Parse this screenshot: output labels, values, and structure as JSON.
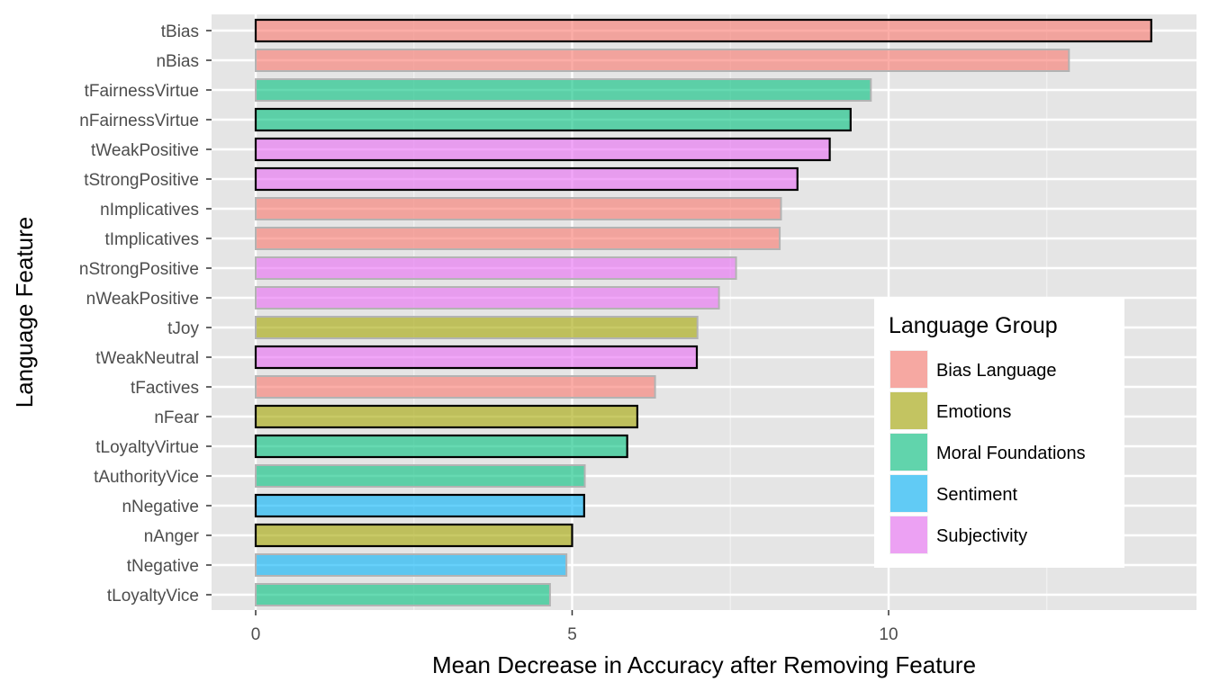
{
  "chart_data": {
    "type": "bar",
    "orientation": "horizontal",
    "xlabel": "Mean Decrease in Accuracy after Removing Feature",
    "ylabel": "Language Feature",
    "xlim": [
      -0.7,
      14.5
    ],
    "xticks": [
      0,
      5,
      10
    ],
    "grid": true,
    "legend": {
      "title": "Language Group",
      "placement": "bottom-right inside",
      "entries": [
        {
          "name": "Bias Language",
          "color": "#f8766d"
        },
        {
          "name": "Emotions",
          "color": "#a3a500"
        },
        {
          "name": "Moral Foundations",
          "color": "#00bf7d"
        },
        {
          "name": "Sentiment",
          "color": "#00b0f6"
        },
        {
          "name": "Subjectivity",
          "color": "#e76bf3"
        }
      ]
    },
    "fill_alpha": 0.6,
    "bars": [
      {
        "feature": "tBias",
        "value": 14.15,
        "group": "Bias Language",
        "outline": "black"
      },
      {
        "feature": "nBias",
        "value": 12.85,
        "group": "Bias Language",
        "outline": "grey"
      },
      {
        "feature": "tFairnessVirtue",
        "value": 9.72,
        "group": "Moral Foundations",
        "outline": "grey"
      },
      {
        "feature": "nFairnessVirtue",
        "value": 9.4,
        "group": "Moral Foundations",
        "outline": "black"
      },
      {
        "feature": "tWeakPositive",
        "value": 9.07,
        "group": "Subjectivity",
        "outline": "black"
      },
      {
        "feature": "tStrongPositive",
        "value": 8.56,
        "group": "Subjectivity",
        "outline": "black"
      },
      {
        "feature": "nImplicatives",
        "value": 8.3,
        "group": "Bias Language",
        "outline": "grey"
      },
      {
        "feature": "tImplicatives",
        "value": 8.28,
        "group": "Bias Language",
        "outline": "grey"
      },
      {
        "feature": "nStrongPositive",
        "value": 7.59,
        "group": "Subjectivity",
        "outline": "grey"
      },
      {
        "feature": "nWeakPositive",
        "value": 7.32,
        "group": "Subjectivity",
        "outline": "grey"
      },
      {
        "feature": "tJoy",
        "value": 6.98,
        "group": "Emotions",
        "outline": "grey"
      },
      {
        "feature": "tWeakNeutral",
        "value": 6.97,
        "group": "Subjectivity",
        "outline": "black"
      },
      {
        "feature": "tFactives",
        "value": 6.31,
        "group": "Bias Language",
        "outline": "grey"
      },
      {
        "feature": "nFear",
        "value": 6.03,
        "group": "Emotions",
        "outline": "black"
      },
      {
        "feature": "tLoyaltyVirtue",
        "value": 5.87,
        "group": "Moral Foundations",
        "outline": "black"
      },
      {
        "feature": "tAuthorityVice",
        "value": 5.2,
        "group": "Moral Foundations",
        "outline": "grey"
      },
      {
        "feature": "nNegative",
        "value": 5.19,
        "group": "Sentiment",
        "outline": "black"
      },
      {
        "feature": "nAnger",
        "value": 5.0,
        "group": "Emotions",
        "outline": "black"
      },
      {
        "feature": "tNegative",
        "value": 4.91,
        "group": "Sentiment",
        "outline": "grey"
      },
      {
        "feature": "tLoyaltyVice",
        "value": 4.65,
        "group": "Moral Foundations",
        "outline": "grey"
      }
    ]
  }
}
